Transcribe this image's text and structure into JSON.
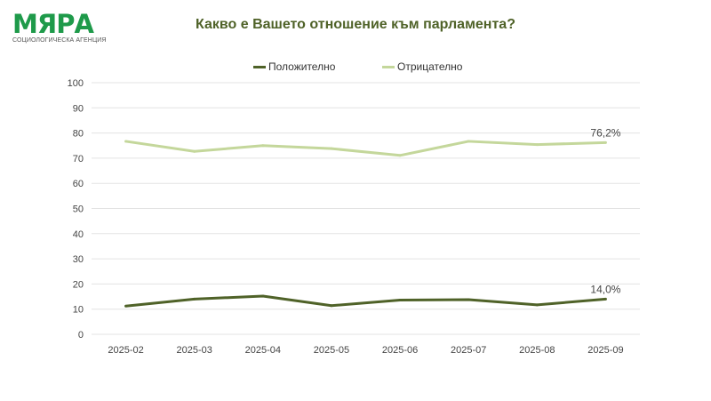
{
  "logo": {
    "name": "МЯРА",
    "subtitle": "СОЦИОЛОГИЧЕСКА АГЕНЦИЯ"
  },
  "chart_data": {
    "type": "line",
    "title": "Какво е Вашето отношение към парламента?",
    "categories": [
      "2025-02",
      "2025-03",
      "2025-04",
      "2025-05",
      "2025-06",
      "2025-07",
      "2025-08",
      "2025-09"
    ],
    "ylim": [
      0,
      100
    ],
    "yticks": [
      0,
      10,
      20,
      30,
      40,
      50,
      60,
      70,
      80,
      90,
      100
    ],
    "grid": true,
    "legend_position": "top",
    "series": [
      {
        "name": "Положително",
        "color": "#4f6228",
        "values": [
          11.2,
          14.0,
          15.2,
          11.4,
          13.6,
          13.8,
          11.7,
          14.0
        ],
        "last_label": "14,0%"
      },
      {
        "name": "Отрицателно",
        "color": "#c4d79b",
        "values": [
          76.7,
          72.7,
          75.0,
          73.8,
          71.1,
          76.7,
          75.4,
          76.2
        ],
        "last_label": "76,2%"
      }
    ]
  }
}
